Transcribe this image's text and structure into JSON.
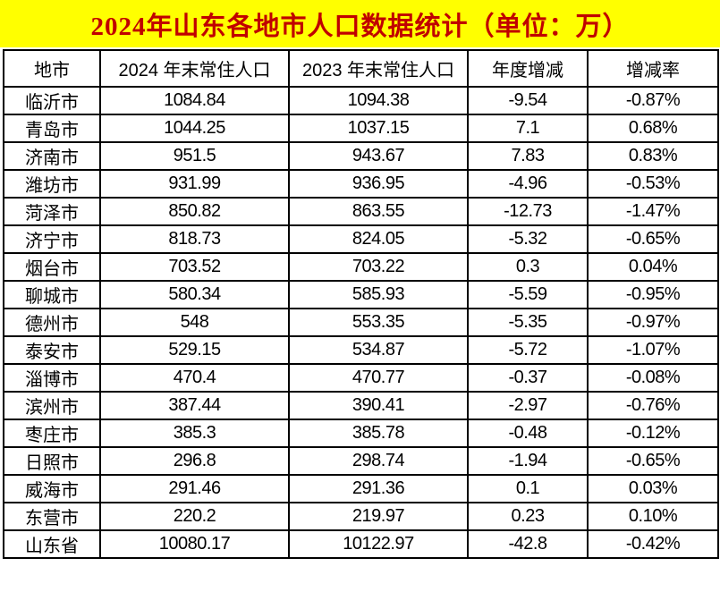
{
  "colors": {
    "title_background": "#FFFF00",
    "title_text": "#C00000",
    "table_border": "#000000",
    "cell_background": "#FFFFFF",
    "cell_text": "#000000"
  },
  "chart_data": {
    "type": "table",
    "title": "2024年山东各地市人口数据统计（单位：万）",
    "columns": [
      "地市",
      "2024 年末常住人口",
      "2023 年末常住人口",
      "年度增减",
      "增减率"
    ],
    "rows": [
      [
        "临沂市",
        "1084.84",
        "1094.38",
        "-9.54",
        "-0.87%"
      ],
      [
        "青岛市",
        "1044.25",
        "1037.15",
        "7.1",
        "0.68%"
      ],
      [
        "济南市",
        "951.5",
        "943.67",
        "7.83",
        "0.83%"
      ],
      [
        "潍坊市",
        "931.99",
        "936.95",
        "-4.96",
        "-0.53%"
      ],
      [
        "菏泽市",
        "850.82",
        "863.55",
        "-12.73",
        "-1.47%"
      ],
      [
        "济宁市",
        "818.73",
        "824.05",
        "-5.32",
        "-0.65%"
      ],
      [
        "烟台市",
        "703.52",
        "703.22",
        "0.3",
        "0.04%"
      ],
      [
        "聊城市",
        "580.34",
        "585.93",
        "-5.59",
        "-0.95%"
      ],
      [
        "德州市",
        "548",
        "553.35",
        "-5.35",
        "-0.97%"
      ],
      [
        "泰安市",
        "529.15",
        "534.87",
        "-5.72",
        "-1.07%"
      ],
      [
        "淄博市",
        "470.4",
        "470.77",
        "-0.37",
        "-0.08%"
      ],
      [
        "滨州市",
        "387.44",
        "390.41",
        "-2.97",
        "-0.76%"
      ],
      [
        "枣庄市",
        "385.3",
        "385.78",
        "-0.48",
        "-0.12%"
      ],
      [
        "日照市",
        "296.8",
        "298.74",
        "-1.94",
        "-0.65%"
      ],
      [
        "威海市",
        "291.46",
        "291.36",
        "0.1",
        "0.03%"
      ],
      [
        "东营市",
        "220.2",
        "219.97",
        "0.23",
        "0.10%"
      ],
      [
        "山东省",
        "10080.17",
        "10122.97",
        "-42.8",
        "-0.42%"
      ]
    ],
    "categories": [
      "临沂市",
      "青岛市",
      "济南市",
      "潍坊市",
      "菏泽市",
      "济宁市",
      "烟台市",
      "聊城市",
      "德州市",
      "泰安市",
      "淄博市",
      "滨州市",
      "枣庄市",
      "日照市",
      "威海市",
      "东营市",
      "山东省"
    ],
    "series": [
      {
        "name": "2024 年末常住人口",
        "values": [
          1084.84,
          1044.25,
          951.5,
          931.99,
          850.82,
          818.73,
          703.52,
          580.34,
          548,
          529.15,
          470.4,
          387.44,
          385.3,
          296.8,
          291.46,
          220.2,
          10080.17
        ]
      },
      {
        "name": "2023 年末常住人口",
        "values": [
          1094.38,
          1037.15,
          943.67,
          936.95,
          863.55,
          824.05,
          703.22,
          585.93,
          553.35,
          534.87,
          470.77,
          390.41,
          385.78,
          298.74,
          291.36,
          219.97,
          10122.97
        ]
      },
      {
        "name": "年度增减",
        "values": [
          -9.54,
          7.1,
          7.83,
          -4.96,
          -12.73,
          -5.32,
          0.3,
          -5.59,
          -5.35,
          -5.72,
          -0.37,
          -2.97,
          -0.48,
          -1.94,
          0.1,
          0.23,
          -42.8
        ]
      },
      {
        "name": "增减率(%)",
        "values": [
          -0.87,
          0.68,
          0.83,
          -0.53,
          -1.47,
          -0.65,
          0.04,
          -0.95,
          -0.97,
          -1.07,
          -0.08,
          -0.76,
          -0.12,
          -0.65,
          0.03,
          0.1,
          -0.42
        ]
      }
    ],
    "layout": {
      "grid": true,
      "unit": "万"
    }
  }
}
